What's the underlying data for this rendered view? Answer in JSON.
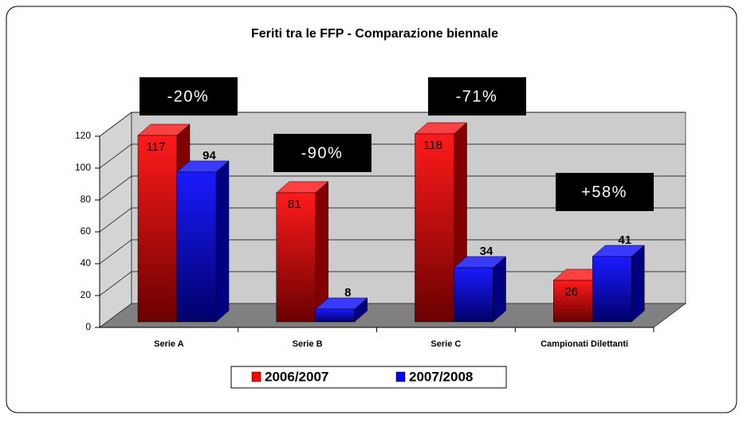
{
  "chart_data": {
    "type": "bar3d",
    "title": "Feriti tra le FFP - Comparazione biennale",
    "categories": [
      "Serie A",
      "Serie B",
      "Serie C",
      "Campionati Dilettanti"
    ],
    "series": [
      {
        "name": "2006/2007",
        "color": "#ff0000",
        "values": [
          117,
          81,
          118,
          26
        ]
      },
      {
        "name": "2007/2008",
        "color": "#0000ff",
        "values": [
          94,
          8,
          34,
          41
        ]
      }
    ],
    "annotations": [
      "-20%",
      "-90%",
      "-71%",
      "+58%"
    ],
    "ylim": [
      0,
      120
    ],
    "yticks": [
      0,
      20,
      40,
      60,
      80,
      100,
      120
    ],
    "grid": true,
    "legend": "bottom"
  }
}
